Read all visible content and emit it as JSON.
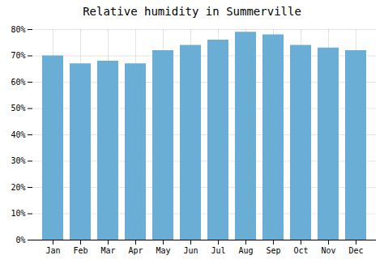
{
  "chart_data": {
    "type": "bar",
    "title": "Relative humidity in Summerville",
    "categories": [
      "Jan",
      "Feb",
      "Mar",
      "Apr",
      "May",
      "Jun",
      "Jul",
      "Aug",
      "Sep",
      "Oct",
      "Nov",
      "Dec"
    ],
    "values": [
      70,
      67,
      68,
      67,
      72,
      74,
      76,
      79,
      78,
      74,
      73,
      72
    ],
    "color": "#6aaed6",
    "ylim": [
      0,
      80
    ],
    "yticks": [
      {
        "value": 0,
        "label": "0%"
      },
      {
        "value": 10,
        "label": "10%"
      },
      {
        "value": 20,
        "label": "20%"
      },
      {
        "value": 30,
        "label": "30%"
      },
      {
        "value": 40,
        "label": "40%"
      },
      {
        "value": 50,
        "label": "50%"
      },
      {
        "value": 60,
        "label": "60%"
      },
      {
        "value": 70,
        "label": "70%"
      },
      {
        "value": 80,
        "label": "80%"
      }
    ],
    "grid": true
  }
}
